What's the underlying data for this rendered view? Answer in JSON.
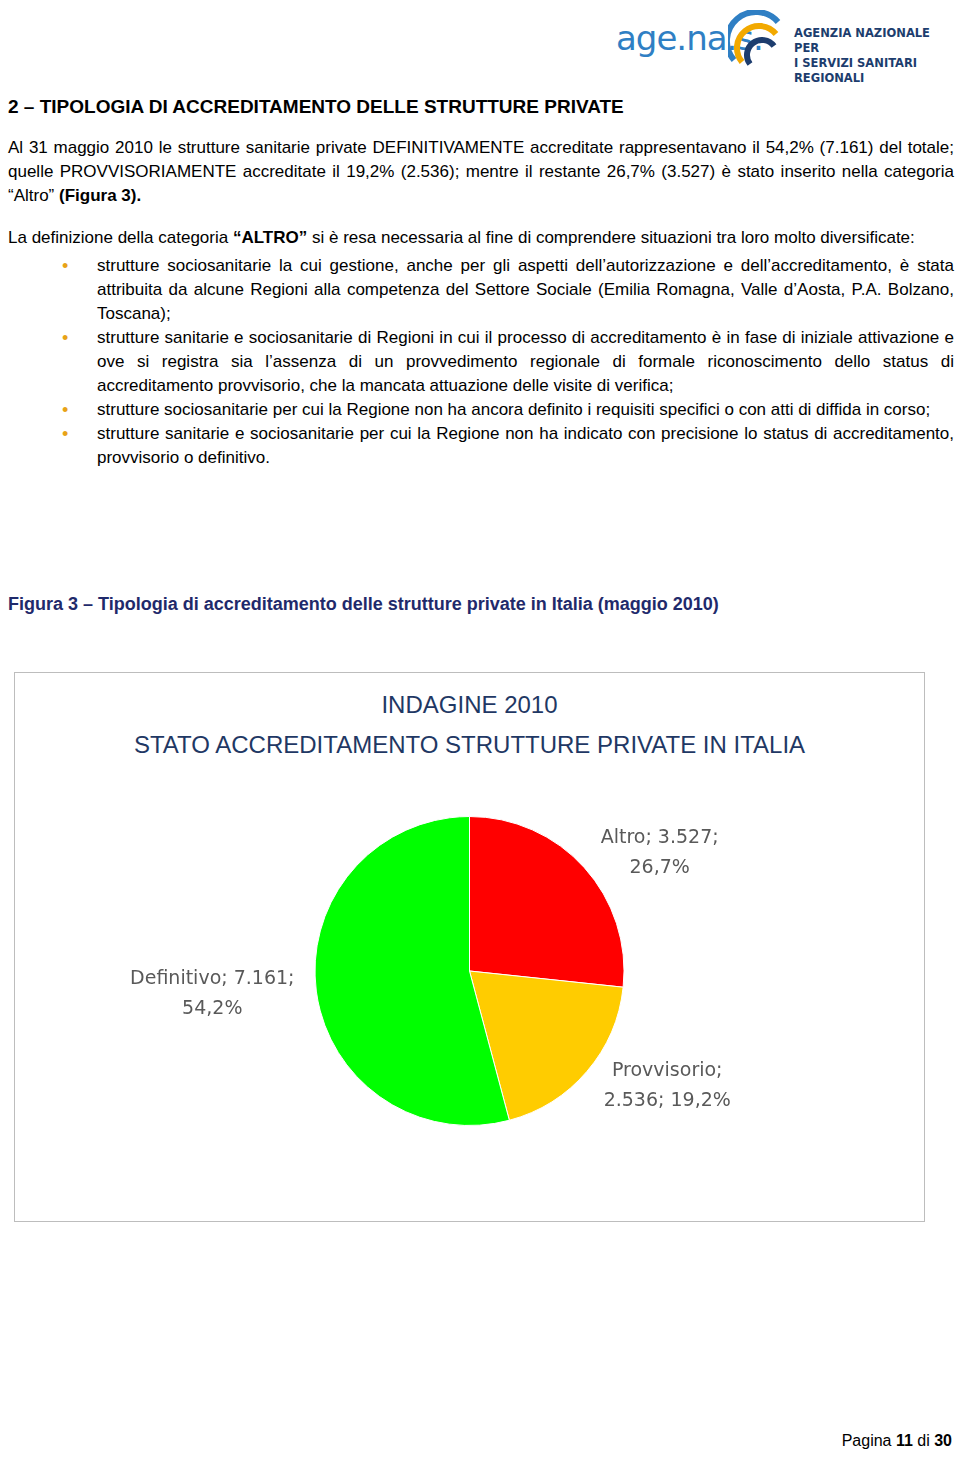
{
  "header": {
    "logo": {
      "name": "age.na.s.",
      "lines": [
        "AGENZIA NAZIONALE PER",
        "I SERVIZI SANITARI REGIONALI"
      ]
    }
  },
  "heading": "2 – TIPOLOGIA DI ACCREDITAMENTO DELLE STRUTTURE PRIVATE",
  "paragraphs": [
    [
      {
        "text": "Al 31 maggio 2010 le strutture sanitarie private DEFINITIVAMENTE accreditate rappresentavano il 54,2% (7.161) del totale; quelle PROVVISORIAMENTE accreditate il 19,2% (2.536); mentre il restante 26,7% (3.527) è stato inserito nella categoria “Altro” ",
        "bold": false
      },
      {
        "text": "(Figura 3).",
        "bold": true
      }
    ],
    [
      {
        "text": "La definizione della categoria ",
        "bold": false
      },
      {
        "text": "“ALTRO”",
        "bold": true
      },
      {
        "text": " si è resa necessaria al fine di comprendere situazioni tra loro molto diversificate:",
        "bold": false
      }
    ]
  ],
  "bullets": [
    "strutture sociosanitarie la cui gestione, anche per gli aspetti dell’autorizzazione e dell’accreditamento, è stata attribuita da alcune Regioni alla competenza del Settore Sociale (Emilia Romagna, Valle d’Aosta, P.A. Bolzano, Toscana);",
    "strutture sanitarie e sociosanitarie di Regioni in cui il processo di accreditamento è in fase di iniziale attivazione e ove si registra sia l’assenza di un provvedimento regionale di formale riconoscimento dello status di accreditamento provvisorio, che la mancata attuazione delle visite di verifica;",
    "strutture sociosanitarie per cui la Regione non ha ancora definito i requisiti specifici o con atti di diffida in corso;",
    "strutture sanitarie e sociosanitarie per cui la Regione non ha indicato con precisione lo status di accreditamento, provvisorio o definitivo."
  ],
  "caption": "Figura 3 – Tipologia di accreditamento delle strutture private in Italia (maggio 2010)",
  "chart_data": {
    "type": "pie",
    "title": [
      "INDAGINE 2010",
      "STATO ACCREDITAMENTO STRUTTURE PRIVATE IN ITALIA"
    ],
    "categories": [
      "Altro",
      "Provvisorio",
      "Definitivo"
    ],
    "values": [
      3527,
      2536,
      7161
    ],
    "value_labels": [
      [
        "Altro; 3.527;",
        "26,7%"
      ],
      [
        "Provvisorio;",
        "2.536; 19,2%"
      ],
      [
        "Definitivo; 7.161;",
        "54,2%"
      ]
    ],
    "colors": [
      "#ff0000",
      "#ffcc00",
      "#00ff00"
    ],
    "data_labels": true
  },
  "footer": [
    {
      "text": "Pagina ",
      "bold": false
    },
    {
      "text": "11",
      "bold": true
    },
    {
      "text": " di ",
      "bold": false
    },
    {
      "text": "30",
      "bold": true
    }
  ]
}
